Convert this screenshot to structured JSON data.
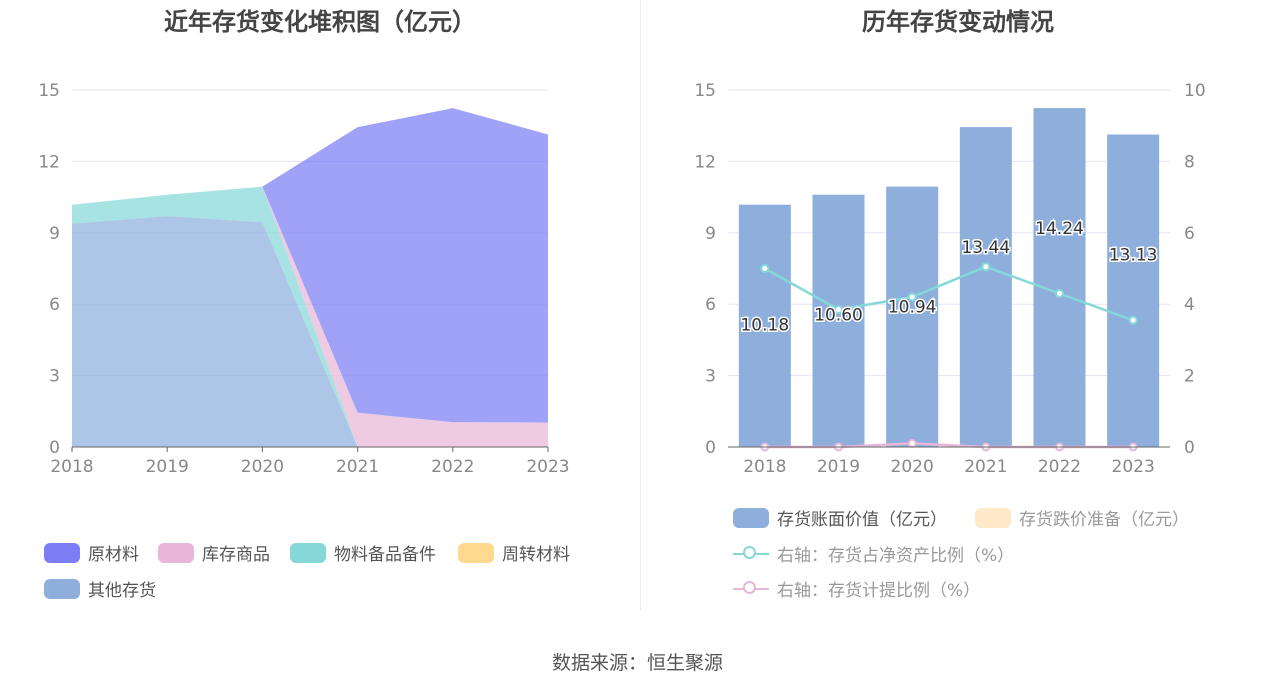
{
  "source_text": "数据来源：恒生聚源",
  "chart_data": [
    {
      "type": "area",
      "stacked": true,
      "title": "近年存货变化堆积图（亿元）",
      "x": [
        "2018",
        "2019",
        "2020",
        "2021",
        "2022",
        "2023"
      ],
      "y_ticks": [
        "0",
        "3",
        "6",
        "9",
        "12",
        "15"
      ],
      "ylim": [
        0,
        15
      ],
      "grid": true,
      "series": [
        {
          "name": "原材料",
          "color": "#7b7ef5",
          "values": [
            0,
            0,
            0,
            12.0,
            13.2,
            12.1
          ]
        },
        {
          "name": "库存商品",
          "color": "#e8b7d8",
          "values": [
            0,
            0,
            0,
            1.44,
            1.04,
            1.03
          ]
        },
        {
          "name": "物料备品备件",
          "color": "#86d8d8",
          "values": [
            0.8,
            0.9,
            1.5,
            0,
            0,
            0
          ]
        },
        {
          "name": "周转材料",
          "color": "#ffd98e",
          "values": [
            0,
            0,
            0,
            0,
            0,
            0
          ]
        },
        {
          "name": "其他存货",
          "color": "#8eaedc",
          "values": [
            9.38,
            9.7,
            9.44,
            0,
            0,
            0
          ]
        }
      ]
    },
    {
      "type": "bar",
      "title": "历年存货变动情况",
      "categories": [
        "2018",
        "2019",
        "2020",
        "2021",
        "2022",
        "2023"
      ],
      "y_ticks": [
        "0",
        "3",
        "6",
        "9",
        "12",
        "15"
      ],
      "y2_ticks": [
        "0",
        "2",
        "4",
        "6",
        "8",
        "10"
      ],
      "ylim": [
        0,
        15
      ],
      "y2lim": [
        0,
        10
      ],
      "grid": true,
      "series": [
        {
          "name": "存货账面价值（亿元）",
          "color": "#8eaedc",
          "axis": "left",
          "values": [
            10.18,
            10.6,
            10.94,
            13.44,
            14.24,
            13.13
          ],
          "labels": [
            "10.18",
            "10.60",
            "10.94",
            "13.44",
            "14.24",
            "13.13"
          ]
        },
        {
          "name": "存货跌价准备（亿元）",
          "color": "#ffe9c8",
          "axis": "left",
          "values": [
            0,
            0,
            0,
            0,
            0,
            0
          ]
        },
        {
          "name": "右轴：存货占净资产比例（%）",
          "color": "#86d8d8",
          "axis": "right",
          "type": "line",
          "values": [
            5.0,
            3.85,
            4.2,
            5.05,
            4.3,
            3.55
          ]
        },
        {
          "name": "右轴：存货计提比例（%）",
          "color": "#e8b7d8",
          "axis": "right",
          "type": "line",
          "values": [
            0,
            0,
            0.1,
            0,
            0,
            0
          ]
        }
      ]
    }
  ]
}
